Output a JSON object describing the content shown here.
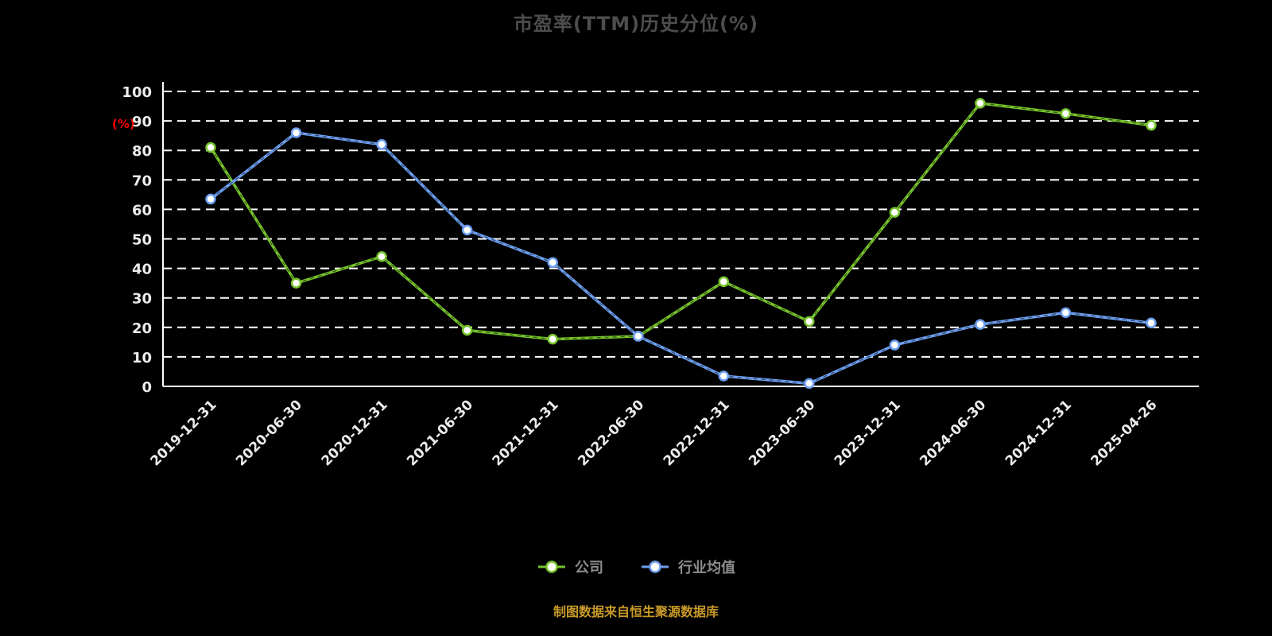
{
  "page": {
    "footer": "制图数据来自恒生聚源数据库"
  },
  "chart_data": {
    "type": "line",
    "title": "市盈率(TTM)历史分位(%)",
    "ylabel": "(%)",
    "xlabel": "",
    "ylim": [
      0,
      100
    ],
    "ytick_step": 10,
    "grid": "horizontal-dashed",
    "legend_position": "bottom-center",
    "background_color": "#000000",
    "gridline_color": "#ffffff",
    "axis_color": "#ffffff",
    "axis_text_color": "#ececec",
    "title_color": "#4d4d4d",
    "ylabel_color": "#ff0000",
    "footer_color": "#c99a28",
    "categories": [
      "2019-12-31",
      "2020-06-30",
      "2020-12-31",
      "2021-06-30",
      "2021-12-31",
      "2022-06-30",
      "2022-12-31",
      "2023-06-30",
      "2023-12-31",
      "2024-06-30",
      "2024-12-31",
      "2025-04-26"
    ],
    "series": [
      {
        "name": "公司",
        "color": "#76c32c",
        "values": [
          81,
          35,
          44,
          19,
          16,
          17,
          35.5,
          22,
          59,
          96,
          92.5,
          88.5
        ]
      },
      {
        "name": "行业均值",
        "color": "#6d9ff0",
        "values": [
          63.5,
          86,
          82,
          53,
          42,
          17,
          3.5,
          1,
          14,
          21,
          25,
          21.5
        ]
      }
    ]
  }
}
